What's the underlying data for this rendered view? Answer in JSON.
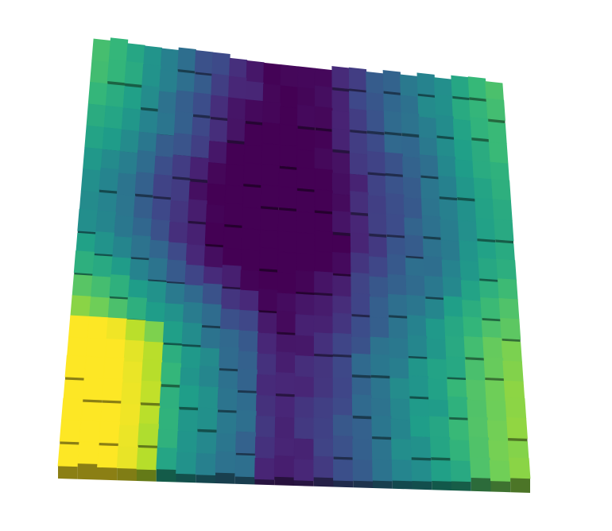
{
  "chart_data": {
    "type": "heatmap",
    "render_style": "3d-surface",
    "colormap": "viridis",
    "colorbar": false,
    "axes_visible": false,
    "grid": false,
    "title": "",
    "xlabel": "",
    "ylabel": "",
    "zlabel": "",
    "cols": 24,
    "rows": 20,
    "value_range": [
      0,
      1
    ],
    "column_profile": [
      0.7,
      0.66,
      0.6,
      0.52,
      0.44,
      0.36,
      0.28,
      0.2,
      0.13,
      0.07,
      0.02,
      0.0,
      0.01,
      0.05,
      0.12,
      0.2,
      0.28,
      0.34,
      0.4,
      0.45,
      0.52,
      0.6,
      0.66,
      0.7
    ],
    "row_profile": [
      0.0,
      0.0,
      -0.04,
      -0.08,
      -0.12,
      -0.17,
      -0.21,
      -0.22,
      -0.2,
      -0.14,
      -0.06,
      0.04,
      0.12,
      0.2,
      0.25,
      0.27,
      0.28,
      0.28,
      0.27,
      0.26
    ],
    "corner_boost": {
      "col_max": 4,
      "row_min": 13,
      "amount": 0.18
    },
    "noise_amplitude": 0.07,
    "palette": [
      "#440154",
      "#482878",
      "#3e4989",
      "#31688e",
      "#26828e",
      "#1f9e89",
      "#35b779",
      "#6ece58",
      "#b5de2b",
      "#fde725"
    ]
  }
}
